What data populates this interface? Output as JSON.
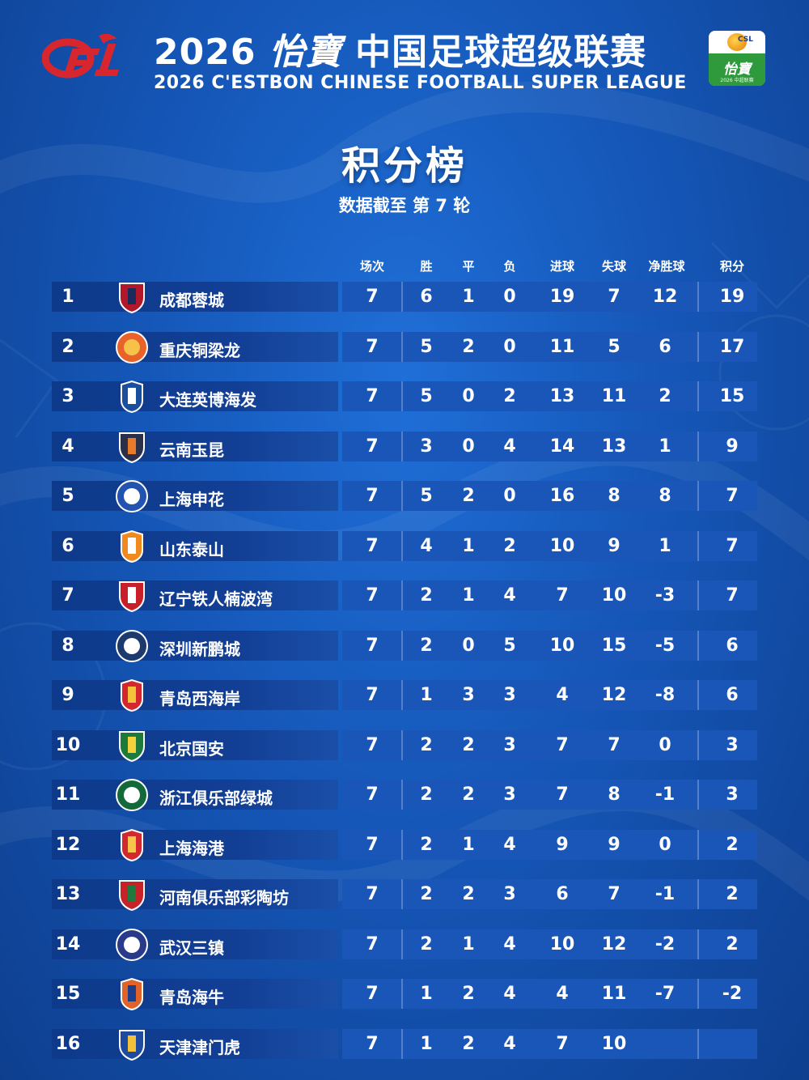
{
  "header": {
    "logo_text": "CFL",
    "title_year": "2026",
    "title_brand": "怡寶",
    "title_name": "中国足球超级联赛",
    "title_en": "2026 C'ESTBON CHINESE FOOTBALL SUPER LEAGUE",
    "badge_top": "CSL",
    "badge_brand": "怡寶",
    "badge_sub": "2026 中超联赛"
  },
  "page": {
    "title": "积分榜",
    "subtitle": "数据截至 第 7 轮"
  },
  "columns": [
    "场次",
    "胜",
    "平",
    "负",
    "进球",
    "失球",
    "净胜球",
    "积分"
  ],
  "standings": [
    {
      "rank": "1",
      "team": "成都蓉城",
      "played": "7",
      "won": "6",
      "drawn": "1",
      "lost": "0",
      "gf": "19",
      "ga": "7",
      "gd": "12",
      "pts": "19",
      "crest_color": "#b3172a",
      "crest_alt": "#1a2b5c"
    },
    {
      "rank": "2",
      "team": "重庆铜梁龙",
      "played": "7",
      "won": "5",
      "drawn": "2",
      "lost": "0",
      "gf": "11",
      "ga": "5",
      "gd": "6",
      "pts": "17",
      "crest_color": "#e8622a",
      "crest_alt": "#f6c24a"
    },
    {
      "rank": "3",
      "team": "大连英博海发",
      "played": "7",
      "won": "5",
      "drawn": "0",
      "lost": "2",
      "gf": "13",
      "ga": "11",
      "gd": "2",
      "pts": "15",
      "crest_color": "#1c4e9e",
      "crest_alt": "#ffffff"
    },
    {
      "rank": "4",
      "team": "云南玉昆",
      "played": "7",
      "won": "3",
      "drawn": "0",
      "lost": "4",
      "gf": "14",
      "ga": "13",
      "gd": "1",
      "pts": "9",
      "crest_color": "#2a2f4a",
      "crest_alt": "#e77b2a"
    },
    {
      "rank": "5",
      "team": "上海申花",
      "played": "7",
      "won": "5",
      "drawn": "2",
      "lost": "0",
      "gf": "16",
      "ga": "8",
      "gd": "8",
      "pts": "7",
      "crest_color": "#2353b0",
      "crest_alt": "#ffffff"
    },
    {
      "rank": "6",
      "team": "山东泰山",
      "played": "7",
      "won": "4",
      "drawn": "1",
      "lost": "2",
      "gf": "10",
      "ga": "9",
      "gd": "1",
      "pts": "7",
      "crest_color": "#f08a1e",
      "crest_alt": "#ffffff"
    },
    {
      "rank": "7",
      "team": "辽宁铁人楠波湾",
      "played": "7",
      "won": "2",
      "drawn": "1",
      "lost": "4",
      "gf": "7",
      "ga": "10",
      "gd": "-3",
      "pts": "7",
      "crest_color": "#c8202a",
      "crest_alt": "#ffffff"
    },
    {
      "rank": "8",
      "team": "深圳新鹏城",
      "played": "7",
      "won": "2",
      "drawn": "0",
      "lost": "5",
      "gf": "10",
      "ga": "15",
      "gd": "-5",
      "pts": "6",
      "crest_color": "#1d3a6e",
      "crest_alt": "#ffffff"
    },
    {
      "rank": "9",
      "team": "青岛西海岸",
      "played": "7",
      "won": "1",
      "drawn": "3",
      "lost": "3",
      "gf": "4",
      "ga": "12",
      "gd": "-8",
      "pts": "6",
      "crest_color": "#d4262e",
      "crest_alt": "#f4c23a"
    },
    {
      "rank": "10",
      "team": "北京国安",
      "played": "7",
      "won": "2",
      "drawn": "2",
      "lost": "3",
      "gf": "7",
      "ga": "7",
      "gd": "0",
      "pts": "3",
      "crest_color": "#1c7a3a",
      "crest_alt": "#f3d23c"
    },
    {
      "rank": "11",
      "team": "浙江俱乐部绿城",
      "played": "7",
      "won": "2",
      "drawn": "2",
      "lost": "3",
      "gf": "7",
      "ga": "8",
      "gd": "-1",
      "pts": "3",
      "crest_color": "#14693a",
      "crest_alt": "#ffffff"
    },
    {
      "rank": "12",
      "team": "上海海港",
      "played": "7",
      "won": "2",
      "drawn": "1",
      "lost": "4",
      "gf": "9",
      "ga": "9",
      "gd": "0",
      "pts": "2",
      "crest_color": "#d3282f",
      "crest_alt": "#f6c54a"
    },
    {
      "rank": "13",
      "team": "河南俱乐部彩陶坊",
      "played": "7",
      "won": "2",
      "drawn": "2",
      "lost": "3",
      "gf": "6",
      "ga": "7",
      "gd": "-1",
      "pts": "2",
      "crest_color": "#c72228",
      "crest_alt": "#1f7a3d"
    },
    {
      "rank": "14",
      "team": "武汉三镇",
      "played": "7",
      "won": "2",
      "drawn": "1",
      "lost": "4",
      "gf": "10",
      "ga": "12",
      "gd": "-2",
      "pts": "2",
      "crest_color": "#2a3a8a",
      "crest_alt": "#ffffff"
    },
    {
      "rank": "15",
      "team": "青岛海牛",
      "played": "7",
      "won": "1",
      "drawn": "2",
      "lost": "4",
      "gf": "4",
      "ga": "11",
      "gd": "-7",
      "pts": "-2",
      "crest_color": "#e2632a",
      "crest_alt": "#1d3e8a"
    },
    {
      "rank": "16",
      "team": "天津津门虎",
      "played": "7",
      "won": "1",
      "drawn": "2",
      "lost": "4",
      "gf": "7",
      "ga": "10",
      "gd": "",
      "pts": "",
      "crest_color": "#1e4aa0",
      "crest_alt": "#f3c23a"
    }
  ]
}
